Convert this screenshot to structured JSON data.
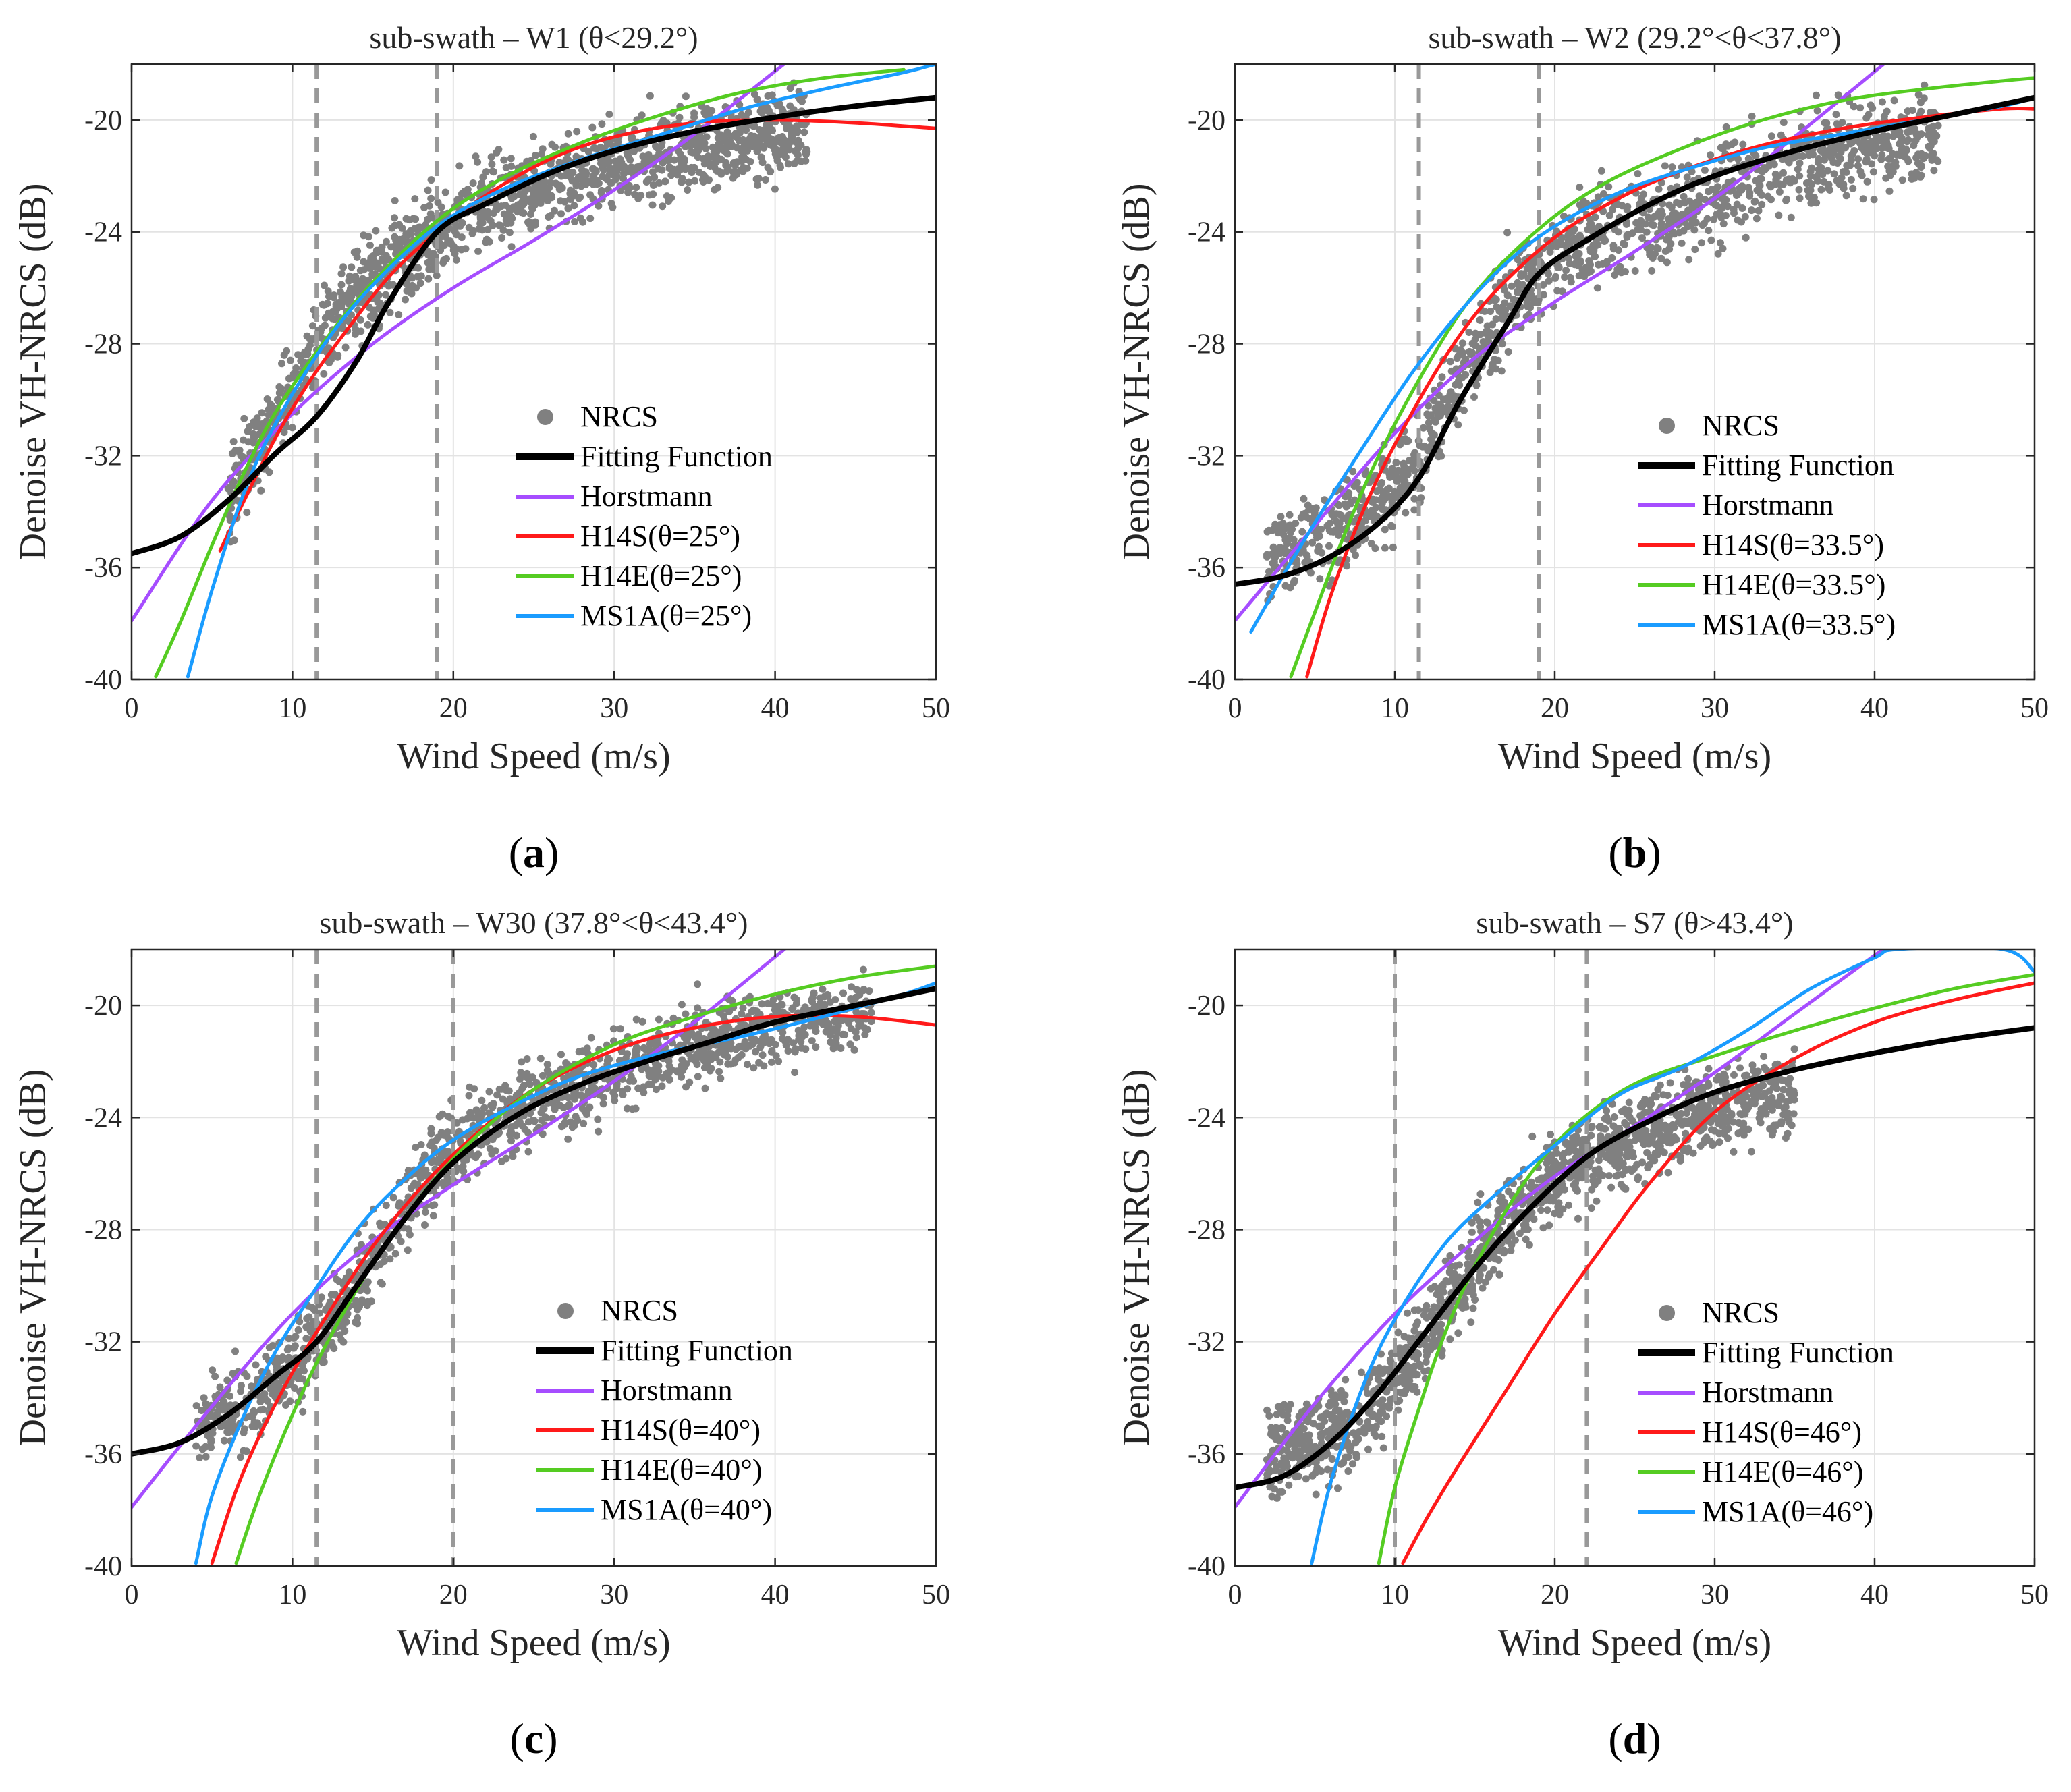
{
  "figure": {
    "xlabel": "Wind Speed (m/s)",
    "ylabel": "Denoise VH-NRCS (dB)",
    "series_colors": {
      "NRCS": "#808080",
      "Fitting Function": "#000000",
      "Horstmann": "#a64dff",
      "H14S": "#ff1a1a",
      "H14E": "#55cc22",
      "MS1A": "#1a9cff",
      "Threshold": "#999999"
    }
  },
  "chart_data": [
    {
      "type": "scatter",
      "panel_label": "a",
      "title": "sub-swath – W1 (θ<29.2°)",
      "xlabel": "Wind Speed (m/s)",
      "ylabel": "Denoise VH-NRCS (dB)",
      "xlim": [
        0,
        50
      ],
      "ylim": [
        -40,
        -18
      ],
      "xticks": [
        0,
        10,
        20,
        30,
        40,
        50
      ],
      "yticks": [
        -40,
        -36,
        -32,
        -28,
        -24,
        -20
      ],
      "grid": true,
      "legend_position": "lower-right",
      "thresholds": [
        11.5,
        19
      ],
      "legend": [
        "NRCS",
        "Fitting Function",
        "Horstmann",
        "H14S(θ=25°)",
        "H14E(θ=25°)",
        "MS1A(θ=25°)"
      ],
      "scatter_centerline": {
        "x": [
          6,
          10,
          14,
          18,
          22,
          26,
          30,
          34,
          38,
          42
        ],
        "y": [
          -33.6,
          -29.5,
          -26.2,
          -24.4,
          -23.0,
          -22.3,
          -21.6,
          -21.0,
          -20.6,
          -20.4
        ]
      },
      "scatter_spread": 1.4,
      "series": [
        {
          "name": "Fitting Function",
          "x": [
            0,
            3,
            6,
            9,
            11.5,
            14,
            16,
            19,
            22,
            26,
            30,
            35,
            40,
            45,
            50
          ],
          "y": [
            -35.5,
            -34.9,
            -33.6,
            -31.9,
            -30.6,
            -28.6,
            -26.5,
            -24.0,
            -23.0,
            -21.9,
            -21.1,
            -20.4,
            -19.9,
            -19.5,
            -19.2
          ]
        },
        {
          "name": "Horstmann",
          "x": [
            0,
            5,
            10,
            15,
            20,
            25,
            30,
            35,
            41
          ],
          "y": [
            -37.9,
            -33.6,
            -30.5,
            -28.0,
            -26.0,
            -24.3,
            -22.5,
            -20.5,
            -17.8
          ]
        },
        {
          "name": "H14S",
          "x": [
            5.5,
            7,
            9,
            11,
            13,
            16,
            19,
            22,
            26,
            30,
            35,
            40,
            45,
            50
          ],
          "y": [
            -35.4,
            -33.6,
            -31.3,
            -29.4,
            -27.8,
            -25.6,
            -24.0,
            -22.7,
            -21.4,
            -20.6,
            -20.1,
            -20.0,
            -20.1,
            -20.3
          ]
        },
        {
          "name": "H14E",
          "x": [
            1.5,
            3,
            5,
            7,
            9,
            12,
            15,
            19,
            23,
            28,
            33,
            38,
            43,
            48
          ],
          "y": [
            -39.9,
            -38.0,
            -35.2,
            -32.6,
            -30.4,
            -27.9,
            -25.8,
            -23.6,
            -22.1,
            -20.8,
            -19.8,
            -19.0,
            -18.5,
            -18.2
          ]
        },
        {
          "name": "MS1A",
          "x": [
            3.5,
            5,
            7,
            9,
            12,
            15,
            19,
            23,
            28,
            33,
            38,
            43,
            48,
            50
          ],
          "y": [
            -39.9,
            -36.8,
            -33.3,
            -30.8,
            -28.0,
            -25.9,
            -23.8,
            -22.5,
            -21.4,
            -20.5,
            -19.6,
            -18.9,
            -18.3,
            -18.0
          ]
        }
      ]
    },
    {
      "type": "scatter",
      "panel_label": "b",
      "title": "sub-swath – W2 (29.2°<θ<37.8°)",
      "xlabel": "Wind Speed (m/s)",
      "ylabel": "Denoise VH-NRCS (dB)",
      "xlim": [
        0,
        50
      ],
      "ylim": [
        -40,
        -18
      ],
      "xticks": [
        0,
        10,
        20,
        30,
        40,
        50
      ],
      "yticks": [
        -40,
        -36,
        -32,
        -28,
        -24,
        -20
      ],
      "grid": true,
      "legend_position": "lower-right",
      "thresholds": [
        11.5,
        19
      ],
      "legend": [
        "NRCS",
        "Fitting Function",
        "Horstmann",
        "H14S(θ=33.5°)",
        "H14E(θ=33.5°)",
        "MS1A(θ=33.5°)"
      ],
      "scatter_centerline": {
        "x": [
          2,
          5,
          8,
          11,
          14,
          17,
          20,
          24,
          28,
          32,
          36,
          40,
          44
        ],
        "y": [
          -35.5,
          -35.0,
          -34.2,
          -32.5,
          -29.4,
          -26.5,
          -24.8,
          -23.9,
          -23.2,
          -22.3,
          -21.4,
          -20.8,
          -20.6
        ]
      },
      "scatter_spread": 1.5,
      "series": [
        {
          "name": "Fitting Function",
          "x": [
            0,
            3,
            6,
            9,
            11.5,
            14,
            17,
            19,
            22,
            26,
            30,
            35,
            40,
            45,
            50
          ],
          "y": [
            -36.6,
            -36.3,
            -35.6,
            -34.4,
            -32.8,
            -30.1,
            -27.3,
            -25.5,
            -24.3,
            -23.0,
            -22.0,
            -21.1,
            -20.4,
            -19.8,
            -19.2
          ]
        },
        {
          "name": "Horstmann",
          "x": [
            0,
            5,
            10,
            15,
            20,
            25,
            30,
            35,
            41
          ],
          "y": [
            -37.9,
            -34.5,
            -31.2,
            -28.5,
            -26.5,
            -24.7,
            -22.8,
            -20.6,
            -17.8
          ]
        },
        {
          "name": "H14S",
          "x": [
            4.5,
            6,
            8,
            10,
            13,
            16,
            20,
            24,
            28,
            33,
            38,
            43,
            48,
            50
          ],
          "y": [
            -39.9,
            -37.0,
            -34.0,
            -31.6,
            -28.6,
            -26.3,
            -24.2,
            -22.8,
            -21.8,
            -20.9,
            -20.3,
            -19.9,
            -19.6,
            -19.6
          ]
        },
        {
          "name": "H14E",
          "x": [
            3.5,
            5,
            7,
            9,
            12,
            15,
            19,
            23,
            28,
            33,
            38,
            43,
            48,
            50
          ],
          "y": [
            -39.9,
            -37.6,
            -34.6,
            -32.0,
            -28.8,
            -26.2,
            -23.9,
            -22.3,
            -21.0,
            -20.0,
            -19.3,
            -18.9,
            -18.6,
            -18.5
          ]
        },
        {
          "name": "MS1A",
          "x": [
            1,
            3,
            5,
            8,
            11,
            14,
            17,
            20,
            24,
            28,
            33,
            38,
            43,
            48,
            50
          ],
          "y": [
            -38.3,
            -36.3,
            -34.4,
            -31.7,
            -29.1,
            -26.9,
            -25.1,
            -23.8,
            -22.6,
            -21.8,
            -21.0,
            -20.5,
            -20.0,
            -19.5,
            -19.2
          ]
        }
      ]
    },
    {
      "type": "scatter",
      "panel_label": "c",
      "title": "sub-swath – W30 (37.8°<θ<43.4°)",
      "xlabel": "Wind Speed (m/s)",
      "ylabel": "Denoise VH-NRCS (dB)",
      "xlim": [
        0,
        50
      ],
      "ylim": [
        -40,
        -18
      ],
      "xticks": [
        0,
        10,
        20,
        30,
        40,
        50
      ],
      "yticks": [
        -40,
        -36,
        -32,
        -28,
        -24,
        -20
      ],
      "grid": true,
      "legend_position": "lower-right",
      "thresholds": [
        11.5,
        20
      ],
      "legend": [
        "NRCS",
        "Fitting Function",
        "Horstmann",
        "H14S(θ=40°)",
        "H14E(θ=40°)",
        "MS1A(θ=40°)"
      ],
      "scatter_centerline": {
        "x": [
          4,
          7,
          10,
          13,
          16,
          19,
          22,
          26,
          30,
          34,
          38,
          42,
          46
        ],
        "y": [
          -35.0,
          -34.3,
          -33.0,
          -30.8,
          -28.2,
          -25.5,
          -24.2,
          -23.2,
          -22.4,
          -21.6,
          -21.0,
          -20.6,
          -20.3
        ]
      },
      "scatter_spread": 1.3,
      "series": [
        {
          "name": "Fitting Function",
          "x": [
            0,
            3,
            6,
            9,
            11.5,
            14,
            17,
            20,
            24,
            28,
            32,
            36,
            40,
            45,
            50
          ],
          "y": [
            -36.0,
            -35.6,
            -34.6,
            -33.2,
            -32.0,
            -30.0,
            -27.6,
            -25.6,
            -23.9,
            -22.8,
            -22.0,
            -21.3,
            -20.6,
            -20.0,
            -19.4
          ]
        },
        {
          "name": "Horstmann",
          "x": [
            0,
            5,
            10,
            15,
            20,
            25,
            30,
            35,
            41
          ],
          "y": [
            -37.9,
            -34.3,
            -31.0,
            -28.4,
            -26.4,
            -24.6,
            -22.7,
            -20.6,
            -17.8
          ]
        },
        {
          "name": "H14S",
          "x": [
            5,
            6.5,
            8,
            10,
            12,
            15,
            18,
            21,
            25,
            30,
            35,
            40,
            45,
            50
          ],
          "y": [
            -39.9,
            -37.3,
            -35.3,
            -33.1,
            -31.2,
            -28.6,
            -26.5,
            -24.8,
            -23.0,
            -21.6,
            -20.8,
            -20.4,
            -20.4,
            -20.7
          ]
        },
        {
          "name": "H14E",
          "x": [
            6.5,
            8,
            10,
            12,
            15,
            18,
            21,
            25,
            30,
            35,
            40,
            45,
            50
          ],
          "y": [
            -39.9,
            -37.4,
            -34.6,
            -32.2,
            -29.2,
            -26.8,
            -24.9,
            -23.0,
            -21.4,
            -20.4,
            -19.6,
            -19.0,
            -18.6
          ]
        },
        {
          "name": "MS1A",
          "x": [
            4,
            5,
            7,
            9,
            11,
            14,
            17,
            20,
            24,
            28,
            33,
            38,
            43,
            48,
            50
          ],
          "y": [
            -39.9,
            -37.5,
            -34.6,
            -32.3,
            -30.5,
            -28.0,
            -26.2,
            -24.8,
            -23.5,
            -22.5,
            -21.7,
            -21.1,
            -20.4,
            -19.6,
            -19.2
          ]
        }
      ]
    },
    {
      "type": "scatter",
      "panel_label": "d",
      "title": "sub-swath – S7 (θ>43.4°)",
      "xlabel": "Wind Speed (m/s)",
      "ylabel": "Denoise VH-NRCS (dB)",
      "xlim": [
        0,
        50
      ],
      "ylim": [
        -40,
        -18
      ],
      "xticks": [
        0,
        10,
        20,
        30,
        40,
        50
      ],
      "yticks": [
        -40,
        -36,
        -32,
        -28,
        -24,
        -20
      ],
      "grid": true,
      "legend_position": "lower-right",
      "thresholds": [
        10,
        22
      ],
      "legend": [
        "NRCS",
        "Fitting Function",
        "Horstmann",
        "H14S(θ=46°)",
        "H14E(θ=46°)",
        "MS1A(θ=46°)"
      ],
      "scatter_centerline": {
        "x": [
          2,
          5,
          8,
          11,
          14,
          17,
          20,
          23,
          26,
          29,
          32,
          35
        ],
        "y": [
          -35.8,
          -35.6,
          -34.8,
          -32.6,
          -30.0,
          -27.6,
          -26.0,
          -25.2,
          -24.4,
          -23.8,
          -23.4,
          -23.2
        ]
      },
      "scatter_spread": 1.4,
      "series": [
        {
          "name": "Fitting Function",
          "x": [
            0,
            3,
            6,
            9,
            12,
            15,
            18,
            22,
            26,
            30,
            35,
            40,
            45,
            50
          ],
          "y": [
            -37.2,
            -36.8,
            -35.6,
            -33.8,
            -31.6,
            -29.4,
            -27.5,
            -25.4,
            -24.1,
            -23.1,
            -22.3,
            -21.7,
            -21.2,
            -20.8
          ]
        },
        {
          "name": "Horstmann",
          "x": [
            0,
            5,
            10,
            15,
            20,
            25,
            30,
            35,
            41
          ],
          "y": [
            -37.9,
            -34.2,
            -31.0,
            -28.4,
            -26.1,
            -24.3,
            -22.4,
            -20.3,
            -17.8
          ]
        },
        {
          "name": "H14S",
          "x": [
            10.5,
            12,
            14,
            17,
            20,
            23,
            26,
            30,
            35,
            40,
            45,
            50
          ],
          "y": [
            -39.9,
            -38.3,
            -36.4,
            -33.7,
            -31.0,
            -28.6,
            -26.3,
            -23.8,
            -21.9,
            -20.6,
            -19.8,
            -19.2
          ]
        },
        {
          "name": "H14E",
          "x": [
            9,
            10,
            11.5,
            13,
            15,
            18,
            21,
            25,
            30,
            35,
            40,
            45,
            50
          ],
          "y": [
            -39.9,
            -37.2,
            -34.4,
            -31.9,
            -29.3,
            -26.4,
            -24.4,
            -22.8,
            -21.8,
            -20.9,
            -20.1,
            -19.4,
            -18.9
          ]
        },
        {
          "name": "MS1A",
          "x": [
            4.8,
            6,
            8,
            10,
            13,
            16,
            20,
            24,
            28,
            32,
            36,
            40,
            41.5,
            48,
            50
          ],
          "y": [
            -39.9,
            -37.0,
            -33.6,
            -31.2,
            -28.6,
            -26.9,
            -25.0,
            -23.2,
            -22.2,
            -20.9,
            -19.4,
            -18.3,
            -18.0,
            -18.0,
            -18.8
          ]
        }
      ]
    }
  ]
}
